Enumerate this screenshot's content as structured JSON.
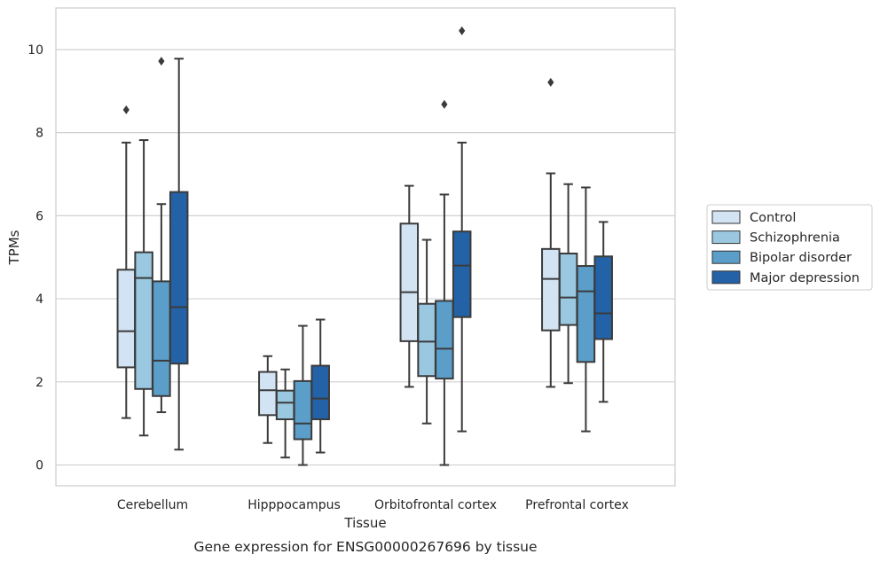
{
  "chart_data": {
    "type": "box",
    "xlabel": "Tissue",
    "ylabel": "TPMs",
    "caption": "Gene expression for ENSG00000267696 by tissue",
    "ylim": [
      -0.5,
      11
    ],
    "yticks": [
      0,
      2,
      4,
      6,
      8,
      10
    ],
    "grid": true,
    "legend_position": "right",
    "categories": [
      "Cerebellum",
      "Hipppocampus",
      "Orbitofrontal cortex",
      "Prefrontal cortex"
    ],
    "series": [
      {
        "name": "Control",
        "color": "#d2e3f3",
        "boxes": [
          {
            "min": 1.13,
            "q1": 2.35,
            "median": 3.22,
            "q3": 4.7,
            "max": 7.76,
            "outliers": [
              8.55
            ]
          },
          {
            "min": 0.53,
            "q1": 1.2,
            "median": 1.8,
            "q3": 2.24,
            "max": 2.62,
            "outliers": []
          },
          {
            "min": 1.88,
            "q1": 2.98,
            "median": 4.16,
            "q3": 5.81,
            "max": 6.72,
            "outliers": []
          },
          {
            "min": 1.88,
            "q1": 3.24,
            "median": 4.48,
            "q3": 5.2,
            "max": 7.02,
            "outliers": [
              9.21
            ]
          }
        ]
      },
      {
        "name": "Schizophrenia",
        "color": "#9ac8e0",
        "boxes": [
          {
            "min": 0.71,
            "q1": 1.83,
            "median": 4.5,
            "q3": 5.12,
            "max": 7.82,
            "outliers": []
          },
          {
            "min": 0.18,
            "q1": 1.1,
            "median": 1.5,
            "q3": 1.79,
            "max": 2.3,
            "outliers": []
          },
          {
            "min": 1.0,
            "q1": 2.14,
            "median": 2.97,
            "q3": 3.88,
            "max": 5.42,
            "outliers": []
          },
          {
            "min": 1.97,
            "q1": 3.37,
            "median": 4.03,
            "q3": 5.09,
            "max": 6.76,
            "outliers": []
          }
        ]
      },
      {
        "name": "Bipolar disorder",
        "color": "#5b9ec9",
        "boxes": [
          {
            "min": 1.27,
            "q1": 1.66,
            "median": 2.51,
            "q3": 4.42,
            "max": 6.28,
            "outliers": [
              9.72
            ]
          },
          {
            "min": 0.0,
            "q1": 0.62,
            "median": 1.0,
            "q3": 2.02,
            "max": 3.35,
            "outliers": []
          },
          {
            "min": 0.0,
            "q1": 2.08,
            "median": 2.8,
            "q3": 3.95,
            "max": 6.51,
            "outliers": [
              8.68
            ]
          },
          {
            "min": 0.81,
            "q1": 2.48,
            "median": 4.18,
            "q3": 4.79,
            "max": 6.68,
            "outliers": []
          }
        ]
      },
      {
        "name": "Major depression",
        "color": "#2362a6",
        "boxes": [
          {
            "min": 0.37,
            "q1": 2.44,
            "median": 3.8,
            "q3": 6.57,
            "max": 9.78,
            "outliers": []
          },
          {
            "min": 0.3,
            "q1": 1.1,
            "median": 1.6,
            "q3": 2.39,
            "max": 3.5,
            "outliers": []
          },
          {
            "min": 0.81,
            "q1": 3.56,
            "median": 4.8,
            "q3": 5.62,
            "max": 7.76,
            "outliers": [
              10.45
            ]
          },
          {
            "min": 1.52,
            "q1": 3.03,
            "median": 3.65,
            "q3": 5.02,
            "max": 5.85,
            "outliers": []
          }
        ]
      }
    ]
  }
}
